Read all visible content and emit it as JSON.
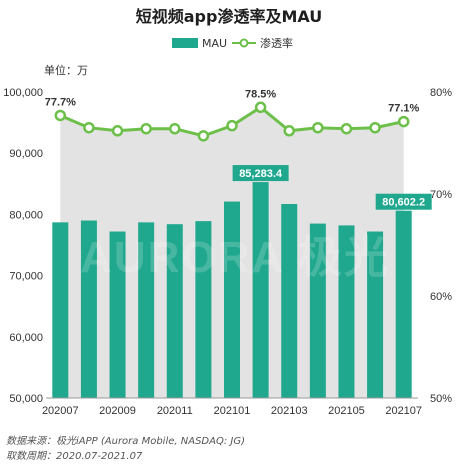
{
  "chart_data": {
    "type": "bar",
    "title": "短视频app渗透率及MAU",
    "unit_label": "单位：万",
    "categories": [
      "202007",
      "202008",
      "202009",
      "202010",
      "202011",
      "202012",
      "202101",
      "202102",
      "202103",
      "202104",
      "202105",
      "202106",
      "202107"
    ],
    "x_tick_labels": [
      "202007",
      "202009",
      "202011",
      "202101",
      "202103",
      "202105",
      "202107"
    ],
    "series": [
      {
        "name": "MAU",
        "type": "bar",
        "axis": "left",
        "color": "#1fa88e",
        "values": [
          78700,
          79000,
          77200,
          78700,
          78400,
          78900,
          82100,
          85283.4,
          81700,
          78500,
          78200,
          77200,
          80602.2
        ]
      },
      {
        "name": "渗透率",
        "type": "line",
        "axis": "right",
        "color": "#6cc04a",
        "values": [
          77.7,
          76.5,
          76.2,
          76.4,
          76.4,
          75.7,
          76.7,
          78.5,
          76.2,
          76.5,
          76.4,
          76.5,
          77.1
        ]
      }
    ],
    "left_axis": {
      "min": 50000,
      "max": 100000,
      "ticks": [
        "50,000",
        "60,000",
        "70,000",
        "80,000",
        "90,000",
        "100,000"
      ]
    },
    "right_axis": {
      "min": 50,
      "max": 80,
      "ticks": [
        "50%",
        "60%",
        "70%",
        "80%"
      ]
    },
    "bar_labels": [
      {
        "index": 7,
        "text": "85,283.4"
      },
      {
        "index": 12,
        "text": "80,602.2"
      }
    ],
    "point_labels": [
      {
        "index": 0,
        "text": "77.7%"
      },
      {
        "index": 7,
        "text": "78.5%"
      },
      {
        "index": 12,
        "text": "77.1%"
      }
    ],
    "legend_position": "top-center",
    "grid": false
  },
  "footnotes": {
    "source": "数据来源：极光iAPP (Aurora Mobile, NASDAQ: JG)",
    "period": "取数周期：2020.07-2021.07"
  },
  "watermark": "AURORA 极光"
}
